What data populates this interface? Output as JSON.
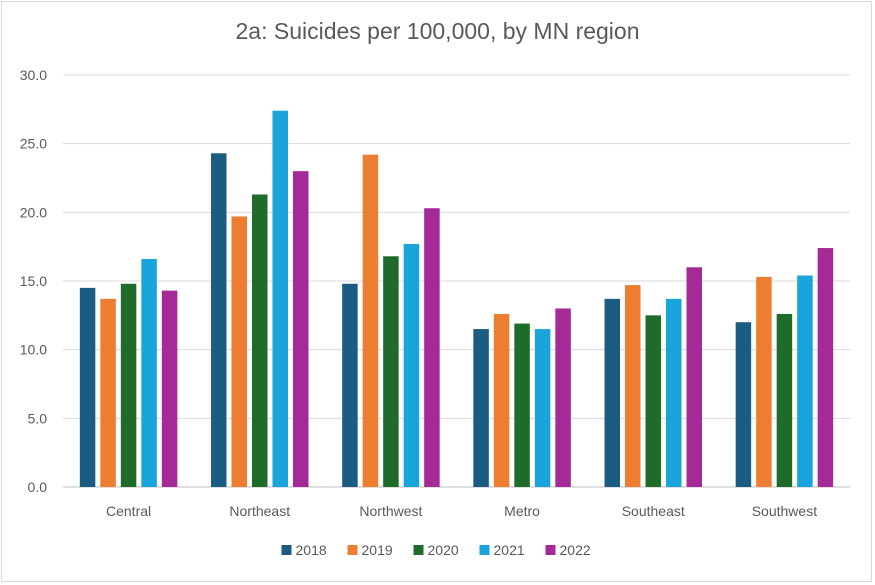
{
  "chart_data": {
    "type": "bar",
    "title": "2a: Suicides per 100,000, by MN region",
    "xlabel": "",
    "ylabel": "",
    "categories": [
      "Central",
      "Northeast",
      "Northwest",
      "Metro",
      "Southeast",
      "Southwest"
    ],
    "series": [
      {
        "name": "2018",
        "color": "#1b5c82",
        "values": [
          14.5,
          24.3,
          14.8,
          11.5,
          13.7,
          12.0
        ]
      },
      {
        "name": "2019",
        "color": "#ed7d31",
        "values": [
          13.7,
          19.7,
          24.2,
          12.6,
          14.7,
          15.3
        ]
      },
      {
        "name": "2020",
        "color": "#1e6b2a",
        "values": [
          14.8,
          21.3,
          16.8,
          11.9,
          12.5,
          12.6
        ]
      },
      {
        "name": "2021",
        "color": "#19a4dc",
        "values": [
          16.6,
          27.4,
          17.7,
          11.5,
          13.7,
          15.4
        ]
      },
      {
        "name": "2022",
        "color": "#a52a98",
        "values": [
          14.3,
          23.0,
          20.3,
          13.0,
          16.0,
          17.4
        ]
      }
    ],
    "ylim": [
      0,
      30
    ],
    "yticks": [
      "0.0",
      "5.0",
      "10.0",
      "15.0",
      "20.0",
      "25.0",
      "30.0"
    ],
    "grid": true,
    "legend_position": "bottom"
  }
}
